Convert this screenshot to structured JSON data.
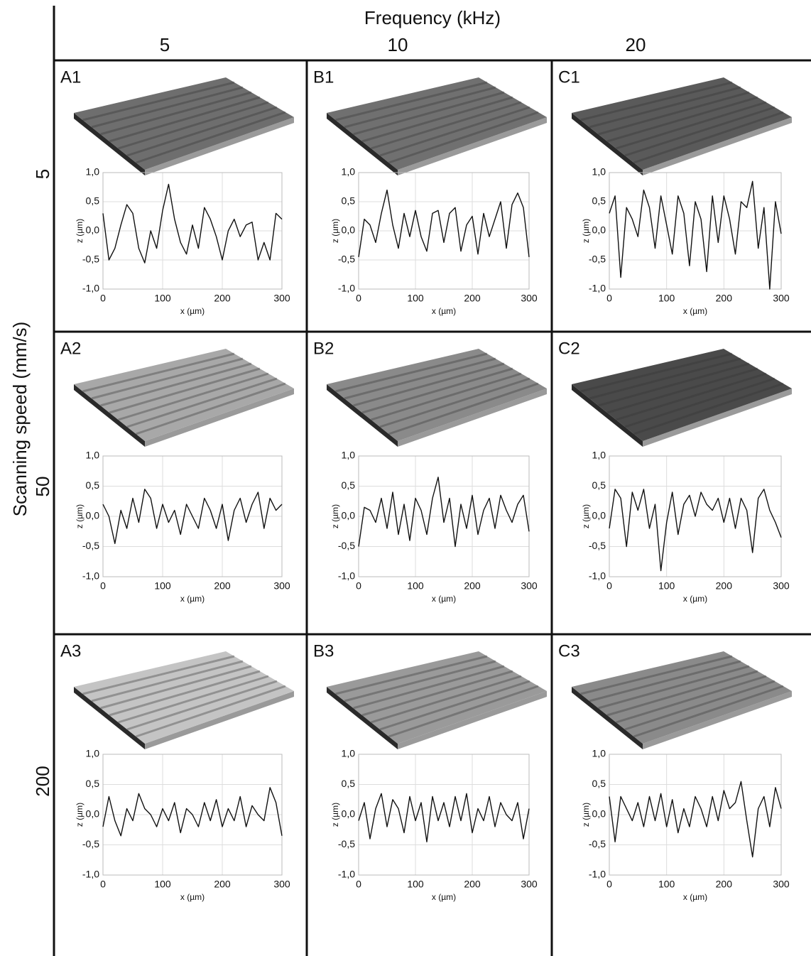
{
  "header": {
    "title": "Frequency (kHz)",
    "columns": [
      "5",
      "10",
      "20"
    ],
    "row_title": "Scanning speed (mm/s)",
    "rows": [
      "5",
      "50",
      "200"
    ]
  },
  "chart_data": [
    {
      "type": "line",
      "label": "A1",
      "xlabel": "x (µm)",
      "ylabel": "z (µm)",
      "color": "#111111",
      "grid": true,
      "xlim": [
        0,
        300
      ],
      "ylim": [
        -1,
        1
      ],
      "xticks": [
        0,
        100,
        200,
        300
      ],
      "yticks": [
        {
          "value": -1,
          "label": "-1,0"
        },
        {
          "value": -0.5,
          "label": "-0,5"
        },
        {
          "value": 0,
          "label": "0,0"
        },
        {
          "value": 0.5,
          "label": "0,5"
        },
        {
          "value": 1,
          "label": "1,0"
        }
      ],
      "x": [
        0,
        10,
        20,
        30,
        40,
        50,
        60,
        70,
        80,
        90,
        100,
        110,
        120,
        130,
        140,
        150,
        160,
        170,
        180,
        190,
        200,
        210,
        220,
        230,
        240,
        250,
        260,
        270,
        280,
        290,
        300
      ],
      "values": [
        0.3,
        -0.5,
        -0.3,
        0.1,
        0.45,
        0.3,
        -0.3,
        -0.55,
        0,
        -0.3,
        0.35,
        0.8,
        0.2,
        -0.2,
        -0.4,
        0.1,
        -0.3,
        0.4,
        0.2,
        -0.1,
        -0.5,
        0,
        0.2,
        -0.1,
        0.1,
        0.15,
        -0.5,
        -0.2,
        -0.5,
        0.3,
        0.2
      ]
    },
    {
      "type": "line",
      "label": "B1",
      "xlabel": "x (µm)",
      "ylabel": "z (µm)",
      "color": "#111111",
      "grid": true,
      "xlim": [
        0,
        300
      ],
      "ylim": [
        -1,
        1
      ],
      "xticks": [
        0,
        100,
        200,
        300
      ],
      "yticks": [
        {
          "value": -1,
          "label": "-1,0"
        },
        {
          "value": -0.5,
          "label": "-0,5"
        },
        {
          "value": 0,
          "label": "0,0"
        },
        {
          "value": 0.5,
          "label": "0,5"
        },
        {
          "value": 1,
          "label": "1,0"
        }
      ],
      "x": [
        0,
        10,
        20,
        30,
        40,
        50,
        60,
        70,
        80,
        90,
        100,
        110,
        120,
        130,
        140,
        150,
        160,
        170,
        180,
        190,
        200,
        210,
        220,
        230,
        240,
        250,
        260,
        270,
        280,
        290,
        300
      ],
      "values": [
        -0.45,
        0.2,
        0.1,
        -0.2,
        0.3,
        0.7,
        0.1,
        -0.3,
        0.3,
        -0.1,
        0.35,
        -0.1,
        -0.35,
        0.3,
        0.35,
        -0.2,
        0.3,
        0.4,
        -0.35,
        0.1,
        0.25,
        -0.4,
        0.3,
        -0.1,
        0.2,
        0.5,
        -0.3,
        0.45,
        0.65,
        0.4,
        -0.45
      ]
    },
    {
      "type": "line",
      "label": "C1",
      "xlabel": "x (µm)",
      "ylabel": "z (µm)",
      "color": "#111111",
      "grid": true,
      "xlim": [
        0,
        300
      ],
      "ylim": [
        -1,
        1
      ],
      "xticks": [
        0,
        100,
        200,
        300
      ],
      "yticks": [
        {
          "value": -1,
          "label": "-1,0"
        },
        {
          "value": -0.5,
          "label": "-0,5"
        },
        {
          "value": 0,
          "label": "0,0"
        },
        {
          "value": 0.5,
          "label": "0,5"
        },
        {
          "value": 1,
          "label": "1,0"
        }
      ],
      "x": [
        0,
        10,
        20,
        30,
        40,
        50,
        60,
        70,
        80,
        90,
        100,
        110,
        120,
        130,
        140,
        150,
        160,
        170,
        180,
        190,
        200,
        210,
        220,
        230,
        240,
        250,
        260,
        270,
        280,
        290,
        300
      ],
      "values": [
        0.3,
        0.6,
        -0.8,
        0.4,
        0.2,
        -0.1,
        0.7,
        0.4,
        -0.3,
        0.6,
        0.1,
        -0.4,
        0.6,
        0.3,
        -0.6,
        0.5,
        0.2,
        -0.7,
        0.6,
        -0.2,
        0.6,
        0.2,
        -0.4,
        0.5,
        0.4,
        0.85,
        -0.3,
        0.4,
        -1.0,
        0.5,
        -0.05
      ]
    },
    {
      "type": "line",
      "label": "A2",
      "xlabel": "x (µm)",
      "ylabel": "z (µm)",
      "color": "#111111",
      "grid": true,
      "xlim": [
        0,
        300
      ],
      "ylim": [
        -1,
        1
      ],
      "xticks": [
        0,
        100,
        200,
        300
      ],
      "yticks": [
        {
          "value": -1,
          "label": "-1,0"
        },
        {
          "value": -0.5,
          "label": "-0,5"
        },
        {
          "value": 0,
          "label": "0,0"
        },
        {
          "value": 0.5,
          "label": "0,5"
        },
        {
          "value": 1,
          "label": "1,0"
        }
      ],
      "x": [
        0,
        10,
        20,
        30,
        40,
        50,
        60,
        70,
        80,
        90,
        100,
        110,
        120,
        130,
        140,
        150,
        160,
        170,
        180,
        190,
        200,
        210,
        220,
        230,
        240,
        250,
        260,
        270,
        280,
        290,
        300
      ],
      "values": [
        0.2,
        0,
        -0.45,
        0.1,
        -0.2,
        0.3,
        -0.1,
        0.45,
        0.3,
        -0.2,
        0.2,
        -0.1,
        0.1,
        -0.3,
        0.2,
        0,
        -0.2,
        0.3,
        0.1,
        -0.2,
        0.2,
        -0.4,
        0.1,
        0.3,
        -0.1,
        0.2,
        0.4,
        -0.2,
        0.3,
        0.1,
        0.2
      ]
    },
    {
      "type": "line",
      "label": "B2",
      "xlabel": "x (µm)",
      "ylabel": "z (µm)",
      "color": "#111111",
      "grid": true,
      "xlim": [
        0,
        300
      ],
      "ylim": [
        -1,
        1
      ],
      "xticks": [
        0,
        100,
        200,
        300
      ],
      "yticks": [
        {
          "value": -1,
          "label": "-1,0"
        },
        {
          "value": -0.5,
          "label": "-0,5"
        },
        {
          "value": 0,
          "label": "0,0"
        },
        {
          "value": 0.5,
          "label": "0,5"
        },
        {
          "value": 1,
          "label": "1,0"
        }
      ],
      "x": [
        0,
        10,
        20,
        30,
        40,
        50,
        60,
        70,
        80,
        90,
        100,
        110,
        120,
        130,
        140,
        150,
        160,
        170,
        180,
        190,
        200,
        210,
        220,
        230,
        240,
        250,
        260,
        270,
        280,
        290,
        300
      ],
      "values": [
        -0.5,
        0.15,
        0.1,
        -0.1,
        0.3,
        -0.2,
        0.4,
        -0.3,
        0.2,
        -0.4,
        0.3,
        0.1,
        -0.3,
        0.3,
        0.65,
        -0.1,
        0.3,
        -0.5,
        0.2,
        -0.2,
        0.35,
        -0.3,
        0.1,
        0.3,
        -0.2,
        0.35,
        0.1,
        -0.1,
        0.2,
        0.35,
        -0.25
      ]
    },
    {
      "type": "line",
      "label": "C2",
      "xlabel": "x (µm)",
      "ylabel": "z (µm)",
      "color": "#111111",
      "grid": true,
      "xlim": [
        0,
        300
      ],
      "ylim": [
        -1,
        1
      ],
      "xticks": [
        0,
        100,
        200,
        300
      ],
      "yticks": [
        {
          "value": -1,
          "label": "-1,0"
        },
        {
          "value": -0.5,
          "label": "-0,5"
        },
        {
          "value": 0,
          "label": "0,0"
        },
        {
          "value": 0.5,
          "label": "0,5"
        },
        {
          "value": 1,
          "label": "1,0"
        }
      ],
      "x": [
        0,
        10,
        20,
        30,
        40,
        50,
        60,
        70,
        80,
        90,
        100,
        110,
        120,
        130,
        140,
        150,
        160,
        170,
        180,
        190,
        200,
        210,
        220,
        230,
        240,
        250,
        260,
        270,
        280,
        290,
        300
      ],
      "values": [
        -0.2,
        0.45,
        0.3,
        -0.5,
        0.4,
        0.1,
        0.45,
        -0.2,
        0.2,
        -0.9,
        -0.1,
        0.4,
        -0.3,
        0.2,
        0.35,
        0,
        0.4,
        0.2,
        0.1,
        0.3,
        -0.1,
        0.3,
        -0.2,
        0.3,
        0.1,
        -0.6,
        0.3,
        0.45,
        0.1,
        -0.1,
        -0.35
      ]
    },
    {
      "type": "line",
      "label": "A3",
      "xlabel": "x (µm)",
      "ylabel": "z (µm)",
      "color": "#111111",
      "grid": true,
      "xlim": [
        0,
        300
      ],
      "ylim": [
        -1,
        1
      ],
      "xticks": [
        0,
        100,
        200,
        300
      ],
      "yticks": [
        {
          "value": -1,
          "label": "-1,0"
        },
        {
          "value": -0.5,
          "label": "-0,5"
        },
        {
          "value": 0,
          "label": "0,0"
        },
        {
          "value": 0.5,
          "label": "0,5"
        },
        {
          "value": 1,
          "label": "1,0"
        }
      ],
      "x": [
        0,
        10,
        20,
        30,
        40,
        50,
        60,
        70,
        80,
        90,
        100,
        110,
        120,
        130,
        140,
        150,
        160,
        170,
        180,
        190,
        200,
        210,
        220,
        230,
        240,
        250,
        260,
        270,
        280,
        290,
        300
      ],
      "values": [
        -0.2,
        0.3,
        -0.1,
        -0.35,
        0.1,
        -0.1,
        0.35,
        0.1,
        0,
        -0.2,
        0.1,
        -0.1,
        0.2,
        -0.3,
        0.1,
        0,
        -0.2,
        0.2,
        -0.1,
        0.25,
        -0.2,
        0.1,
        -0.1,
        0.3,
        -0.2,
        0.15,
        0,
        -0.1,
        0.45,
        0.2,
        -0.35
      ]
    },
    {
      "type": "line",
      "label": "B3",
      "xlabel": "x (µm)",
      "ylabel": "z (µm)",
      "color": "#111111",
      "grid": true,
      "xlim": [
        0,
        300
      ],
      "ylim": [
        -1,
        1
      ],
      "xticks": [
        0,
        100,
        200,
        300
      ],
      "yticks": [
        {
          "value": -1,
          "label": "-1,0"
        },
        {
          "value": -0.5,
          "label": "-0,5"
        },
        {
          "value": 0,
          "label": "0,0"
        },
        {
          "value": 0.5,
          "label": "0,5"
        },
        {
          "value": 1,
          "label": "1,0"
        }
      ],
      "x": [
        0,
        10,
        20,
        30,
        40,
        50,
        60,
        70,
        80,
        90,
        100,
        110,
        120,
        130,
        140,
        150,
        160,
        170,
        180,
        190,
        200,
        210,
        220,
        230,
        240,
        250,
        260,
        270,
        280,
        290,
        300
      ],
      "values": [
        -0.1,
        0.2,
        -0.4,
        0.1,
        0.35,
        -0.2,
        0.25,
        0.1,
        -0.3,
        0.3,
        -0.1,
        0.2,
        -0.45,
        0.3,
        -0.1,
        0.2,
        -0.2,
        0.3,
        -0.1,
        0.35,
        -0.3,
        0.1,
        -0.1,
        0.3,
        -0.2,
        0.2,
        0,
        -0.1,
        0.2,
        -0.4,
        0.1
      ]
    },
    {
      "type": "line",
      "label": "C3",
      "xlabel": "x (µm)",
      "ylabel": "z (µm)",
      "color": "#111111",
      "grid": true,
      "xlim": [
        0,
        300
      ],
      "ylim": [
        -1,
        1
      ],
      "xticks": [
        0,
        100,
        200,
        300
      ],
      "yticks": [
        {
          "value": -1,
          "label": "-1,0"
        },
        {
          "value": -0.5,
          "label": "-0,5"
        },
        {
          "value": 0,
          "label": "0,0"
        },
        {
          "value": 0.5,
          "label": "0,5"
        },
        {
          "value": 1,
          "label": "1,0"
        }
      ],
      "x": [
        0,
        10,
        20,
        30,
        40,
        50,
        60,
        70,
        80,
        90,
        100,
        110,
        120,
        130,
        140,
        150,
        160,
        170,
        180,
        190,
        200,
        210,
        220,
        230,
        240,
        250,
        260,
        270,
        280,
        290,
        300
      ],
      "values": [
        0.3,
        -0.45,
        0.3,
        0.1,
        -0.1,
        0.2,
        -0.2,
        0.3,
        -0.1,
        0.35,
        -0.2,
        0.25,
        -0.3,
        0.1,
        -0.2,
        0.3,
        0.1,
        -0.2,
        0.3,
        -0.1,
        0.4,
        0.1,
        0.2,
        0.55,
        -0.1,
        -0.7,
        0.1,
        0.3,
        -0.2,
        0.45,
        0.1
      ]
    }
  ]
}
